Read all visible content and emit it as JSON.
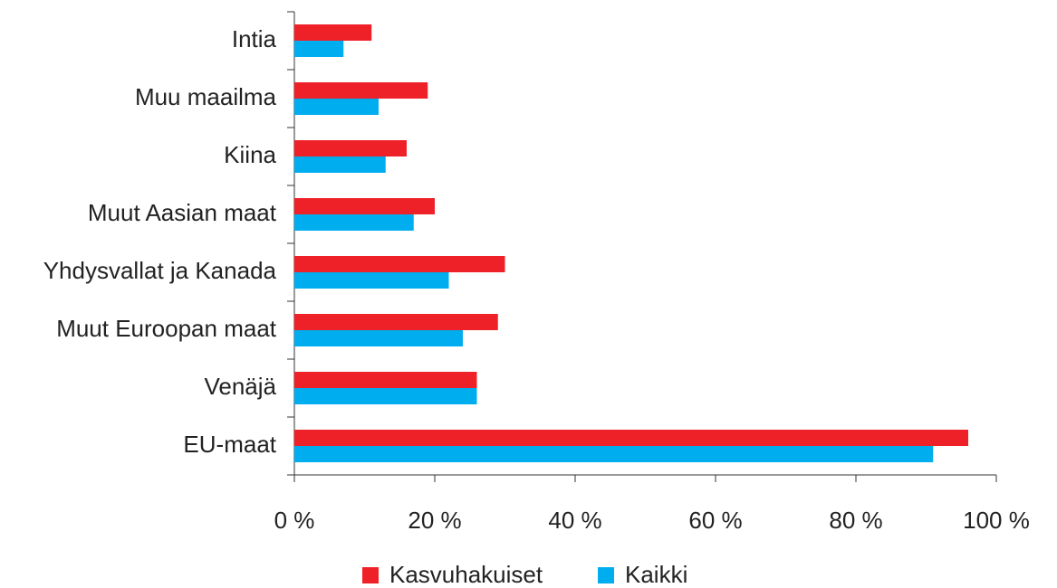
{
  "chart_data": {
    "type": "barh",
    "categories": [
      "Intia",
      "Muu maailma",
      "Kiina",
      "Muut Aasian maat",
      "Yhdysvallat ja Kanada",
      "Muut Euroopan maat",
      "Venäjä",
      "EU-maat"
    ],
    "series": [
      {
        "name": "Kasvuhakuiset",
        "color": "#ee2028",
        "values": [
          11,
          19,
          16,
          20,
          30,
          29,
          26,
          96
        ]
      },
      {
        "name": "Kaikki",
        "color": "#00adef",
        "values": [
          7,
          12,
          13,
          17,
          22,
          24,
          26,
          91
        ]
      }
    ],
    "xlim": [
      0,
      100
    ],
    "xticks": [
      {
        "value": 0,
        "label": "0 %"
      },
      {
        "value": 20,
        "label": "20 %"
      },
      {
        "value": 40,
        "label": "40 %"
      },
      {
        "value": 60,
        "label": "60 %"
      },
      {
        "value": 80,
        "label": "80 %"
      },
      {
        "value": 100,
        "label": "100 %"
      }
    ],
    "legend": "bottom"
  }
}
